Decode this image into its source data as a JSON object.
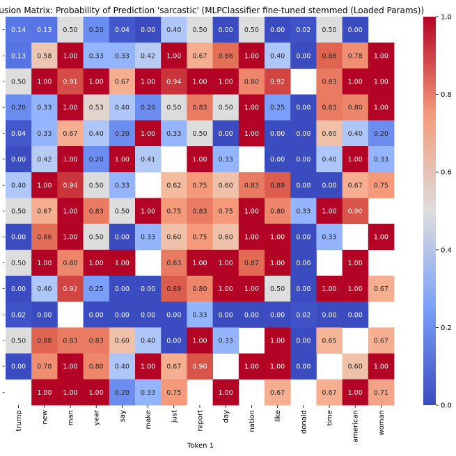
{
  "chart_data": {
    "type": "heatmap",
    "title": "Confusion Matrix: Probability of Prediction 'sarcastic' (MLPClassifier fine-tuned stemmed (Loaded Params))",
    "xlabel": "Token 1",
    "ylabel": "",
    "x_tokens": [
      "trump",
      "new",
      "man",
      "year",
      "say",
      "make",
      "just",
      "report",
      "day",
      "nation",
      "like",
      "donald",
      "time",
      "american",
      "woman"
    ],
    "y_tick_labels": [
      "-",
      "-",
      "-",
      "-",
      "-",
      "-",
      "-",
      "-",
      "-",
      "-",
      "-",
      "-",
      "-",
      "-",
      "-"
    ],
    "colorbar": {
      "min": 0.0,
      "max": 1.0,
      "ticks": [
        "0.0",
        "0.2",
        "0.4",
        "0.6",
        "0.8",
        "1.0"
      ]
    },
    "colors": {
      "low": "#3b4cc0",
      "mid": "#dddddd",
      "high": "#b40426"
    },
    "values": [
      [
        0.14,
        0.13,
        0.5,
        0.2,
        0.04,
        0.0,
        0.4,
        0.5,
        0.0,
        0.5,
        0.0,
        0.02,
        0.5,
        0.0,
        null
      ],
      [
        0.13,
        0.58,
        1.0,
        0.33,
        0.33,
        0.42,
        1.0,
        0.67,
        0.86,
        1.0,
        0.4,
        0.0,
        0.88,
        0.78,
        1.0
      ],
      [
        0.5,
        1.0,
        0.91,
        1.0,
        0.67,
        1.0,
        0.94,
        1.0,
        1.0,
        0.8,
        0.92,
        null,
        0.83,
        1.0,
        1.0
      ],
      [
        0.2,
        0.33,
        1.0,
        0.53,
        0.4,
        0.2,
        0.5,
        0.83,
        0.5,
        1.0,
        0.25,
        0.0,
        0.83,
        0.8,
        1.0
      ],
      [
        0.04,
        0.33,
        0.67,
        0.4,
        0.2,
        1.0,
        0.33,
        0.5,
        0.0,
        1.0,
        0.0,
        0.0,
        0.6,
        0.4,
        0.2
      ],
      [
        0.0,
        0.42,
        1.0,
        0.2,
        1.0,
        0.41,
        null,
        1.0,
        0.33,
        null,
        0.0,
        0.0,
        0.4,
        1.0,
        0.33
      ],
      [
        0.4,
        1.0,
        0.94,
        0.5,
        0.33,
        null,
        0.62,
        0.75,
        0.6,
        0.83,
        0.89,
        0.0,
        0.0,
        0.67,
        0.75
      ],
      [
        0.5,
        0.67,
        1.0,
        0.83,
        0.5,
        1.0,
        0.75,
        0.83,
        0.75,
        1.0,
        0.8,
        0.33,
        1.0,
        0.9,
        null
      ],
      [
        0.0,
        0.86,
        1.0,
        0.5,
        0.0,
        0.33,
        0.6,
        0.75,
        0.6,
        1.0,
        1.0,
        0.0,
        0.33,
        null,
        1.0
      ],
      [
        0.5,
        1.0,
        0.8,
        1.0,
        1.0,
        null,
        0.83,
        1.0,
        1.0,
        0.87,
        1.0,
        0.0,
        null,
        1.0,
        null
      ],
      [
        0.0,
        0.4,
        0.92,
        0.25,
        0.0,
        0.0,
        0.89,
        0.8,
        1.0,
        1.0,
        0.5,
        0.0,
        1.0,
        1.0,
        0.67
      ],
      [
        0.02,
        0.0,
        null,
        0.0,
        0.0,
        0.0,
        0.0,
        0.33,
        0.0,
        0.0,
        0.0,
        0.02,
        0.0,
        0.0,
        null
      ],
      [
        0.5,
        0.88,
        0.83,
        0.83,
        0.6,
        0.4,
        0.0,
        1.0,
        0.33,
        null,
        1.0,
        0.0,
        0.65,
        null,
        0.67
      ],
      [
        0.0,
        0.78,
        1.0,
        0.8,
        0.4,
        1.0,
        0.67,
        0.9,
        null,
        1.0,
        1.0,
        0.0,
        null,
        0.6,
        1.0
      ],
      [
        null,
        1.0,
        1.0,
        1.0,
        0.2,
        0.33,
        0.75,
        null,
        1.0,
        null,
        0.67,
        null,
        0.67,
        1.0,
        0.71
      ]
    ]
  }
}
